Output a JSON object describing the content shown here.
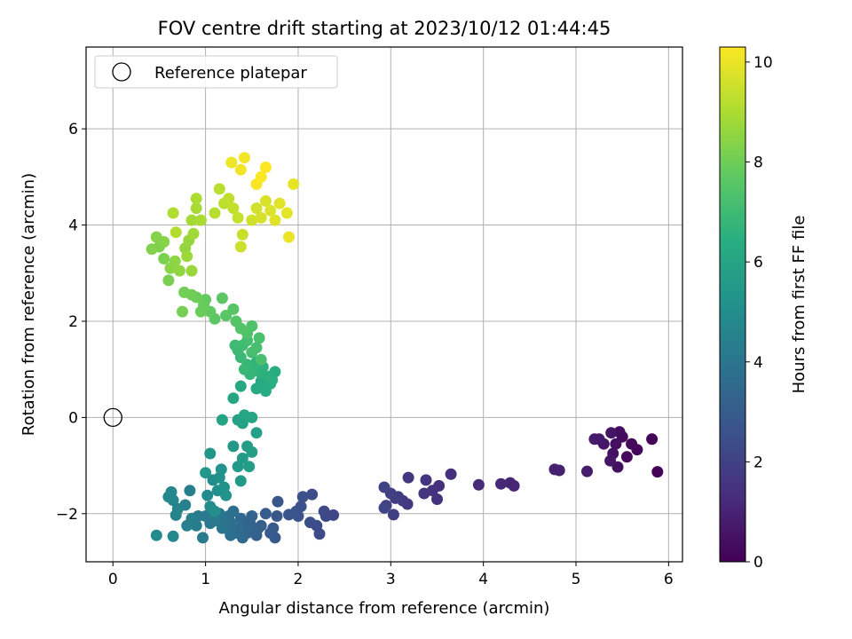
{
  "chart_data": {
    "type": "scatter",
    "title": "FOV centre drift starting at 2023/10/12 01:44:45",
    "xlabel": "Angular distance from reference (arcmin)",
    "ylabel": "Rotation from reference (arcmin)",
    "xlim": [
      -0.29,
      6.15
    ],
    "ylim": [
      -3.0,
      7.7
    ],
    "xticks": [
      0,
      1,
      2,
      3,
      4,
      5,
      6
    ],
    "yticks": [
      -2,
      0,
      2,
      4,
      6
    ],
    "grid": true,
    "legend": {
      "placement": "top-left",
      "entries": [
        {
          "label": "Reference platepar",
          "marker": "open-circle",
          "x": 0,
          "y": 0
        }
      ]
    },
    "colorbar": {
      "label": "Hours from first FF file",
      "colormap": "viridis",
      "range": [
        0,
        10.3
      ],
      "ticks": [
        0,
        2,
        4,
        6,
        8,
        10
      ]
    },
    "points": [
      [
        5.88,
        -1.13,
        0.05
      ],
      [
        5.82,
        -0.45,
        0.1
      ],
      [
        5.66,
        -0.67,
        0.15
      ],
      [
        5.6,
        -0.55,
        0.2
      ],
      [
        5.55,
        -0.82,
        0.25
      ],
      [
        5.5,
        -0.4,
        0.3
      ],
      [
        5.47,
        -0.3,
        0.35
      ],
      [
        5.45,
        -1.03,
        0.4
      ],
      [
        5.43,
        -0.55,
        0.45
      ],
      [
        5.4,
        -0.75,
        0.5
      ],
      [
        5.38,
        -0.32,
        0.55
      ],
      [
        5.37,
        -0.9,
        0.6
      ],
      [
        5.3,
        -0.55,
        0.65
      ],
      [
        5.25,
        -0.45,
        0.7
      ],
      [
        5.2,
        -0.45,
        0.75
      ],
      [
        5.12,
        -1.12,
        0.8
      ],
      [
        4.82,
        -1.1,
        0.9
      ],
      [
        4.77,
        -1.08,
        0.95
      ],
      [
        4.33,
        -1.42,
        1.05
      ],
      [
        4.29,
        -1.36,
        1.1
      ],
      [
        4.19,
        -1.38,
        1.15
      ],
      [
        3.95,
        -1.4,
        1.25
      ],
      [
        3.65,
        -1.18,
        1.35
      ],
      [
        3.52,
        -1.42,
        1.4
      ],
      [
        3.5,
        -1.7,
        1.45
      ],
      [
        3.45,
        -1.52,
        1.5
      ],
      [
        3.38,
        -1.3,
        1.55
      ],
      [
        3.36,
        -1.58,
        1.6
      ],
      [
        3.19,
        -1.25,
        1.65
      ],
      [
        3.18,
        -1.8,
        1.7
      ],
      [
        3.13,
        -1.73,
        1.75
      ],
      [
        3.08,
        -1.65,
        1.8
      ],
      [
        3.05,
        -1.68,
        1.85
      ],
      [
        3.03,
        -2.02,
        1.9
      ],
      [
        3.0,
        -1.58,
        1.95
      ],
      [
        2.95,
        -1.83,
        2.0
      ],
      [
        2.93,
        -1.45,
        2.05
      ],
      [
        2.93,
        -1.88,
        2.1
      ],
      [
        2.38,
        -2.03,
        2.15
      ],
      [
        2.3,
        -2.05,
        2.2
      ],
      [
        2.28,
        -1.95,
        2.25
      ],
      [
        2.23,
        -2.42,
        2.3
      ],
      [
        2.2,
        -2.25,
        2.35
      ],
      [
        2.15,
        -1.6,
        2.4
      ],
      [
        2.13,
        -2.18,
        2.45
      ],
      [
        2.05,
        -1.65,
        2.5
      ],
      [
        2.03,
        -1.85,
        2.55
      ],
      [
        2.0,
        -2.05,
        2.6
      ],
      [
        1.98,
        -1.95,
        2.65
      ],
      [
        1.9,
        -2.02,
        2.7
      ],
      [
        1.78,
        -1.75,
        2.75
      ],
      [
        1.77,
        -2.05,
        2.8
      ],
      [
        1.75,
        -2.5,
        2.85
      ],
      [
        1.73,
        -2.3,
        2.9
      ],
      [
        1.7,
        -2.4,
        2.95
      ],
      [
        1.65,
        -2.0,
        3.0
      ],
      [
        1.6,
        -2.25,
        3.05
      ],
      [
        1.57,
        -2.3,
        3.1
      ],
      [
        1.55,
        -2.45,
        3.15
      ],
      [
        1.52,
        -2.35,
        3.2
      ],
      [
        1.5,
        -2.05,
        3.25
      ],
      [
        1.48,
        -2.2,
        3.3
      ],
      [
        1.45,
        -2.4,
        3.35
      ],
      [
        1.42,
        -2.3,
        3.4
      ],
      [
        1.4,
        -2.5,
        3.45
      ],
      [
        1.38,
        -2.1,
        3.5
      ],
      [
        1.35,
        -2.32,
        3.55
      ],
      [
        1.32,
        -2.4,
        3.6
      ],
      [
        1.3,
        -1.95,
        3.65
      ],
      [
        1.28,
        -2.2,
        3.7
      ],
      [
        1.27,
        -2.45,
        3.75
      ],
      [
        1.25,
        -2.05,
        3.8
      ],
      [
        1.22,
        -2.3,
        3.85
      ],
      [
        1.2,
        -2.1,
        3.9
      ],
      [
        1.18,
        -2.3,
        3.95
      ],
      [
        1.15,
        -2.0,
        4.0
      ],
      [
        1.1,
        -2.15,
        4.05
      ],
      [
        1.05,
        -2.2,
        4.1
      ],
      [
        1.0,
        -2.05,
        4.15
      ],
      [
        0.97,
        -2.5,
        4.2
      ],
      [
        0.92,
        -2.05,
        4.25
      ],
      [
        0.9,
        -2.25,
        4.3
      ],
      [
        0.85,
        -2.1,
        4.35
      ],
      [
        0.83,
        -1.52,
        4.4
      ],
      [
        0.8,
        -2.25,
        4.45
      ],
      [
        0.78,
        -1.82,
        4.5
      ],
      [
        0.7,
        -1.9,
        4.55
      ],
      [
        0.68,
        -2.03,
        4.6
      ],
      [
        0.65,
        -1.72,
        4.65
      ],
      [
        0.63,
        -1.55,
        4.7
      ],
      [
        0.6,
        -1.65,
        4.75
      ],
      [
        0.65,
        -2.47,
        4.8
      ],
      [
        0.47,
        -2.45,
        4.85
      ],
      [
        1.02,
        -1.62,
        4.9
      ],
      [
        1.05,
        -1.85,
        4.95
      ],
      [
        1.08,
        -1.3,
        5.0
      ],
      [
        1.1,
        -1.95,
        5.05
      ],
      [
        1.13,
        -1.52,
        5.1
      ],
      [
        1.15,
        -1.25,
        5.15
      ],
      [
        1.17,
        -1.08,
        5.2
      ],
      [
        1.2,
        -1.45,
        5.25
      ],
      [
        1.22,
        -1.62,
        5.3
      ],
      [
        1.05,
        -0.75,
        5.35
      ],
      [
        1.0,
        -1.15,
        5.4
      ],
      [
        1.3,
        -0.6,
        5.45
      ],
      [
        1.35,
        -1.02,
        5.5
      ],
      [
        1.38,
        -1.32,
        5.55
      ],
      [
        1.4,
        -0.85,
        5.6
      ],
      [
        1.45,
        -0.6,
        5.65
      ],
      [
        1.47,
        -1.02,
        5.7
      ],
      [
        1.5,
        -0.72,
        5.75
      ],
      [
        1.55,
        -0.32,
        5.8
      ],
      [
        1.4,
        -0.12,
        5.85
      ],
      [
        1.35,
        -0.05,
        5.9
      ],
      [
        1.18,
        -0.05,
        5.95
      ],
      [
        1.42,
        0.05,
        6.0
      ],
      [
        1.5,
        0.0,
        6.05
      ],
      [
        1.3,
        0.4,
        6.1
      ],
      [
        1.38,
        0.65,
        6.15
      ],
      [
        1.55,
        0.6,
        6.2
      ],
      [
        1.6,
        0.75,
        6.25
      ],
      [
        1.65,
        0.55,
        6.3
      ],
      [
        1.7,
        0.7,
        6.35
      ],
      [
        1.75,
        0.95,
        6.4
      ],
      [
        1.72,
        0.78,
        6.45
      ],
      [
        1.68,
        0.85,
        6.5
      ],
      [
        1.62,
        1.05,
        6.55
      ],
      [
        1.58,
        0.95,
        6.6
      ],
      [
        1.55,
        1.15,
        6.65
      ],
      [
        1.52,
        1.0,
        6.7
      ],
      [
        1.48,
        0.9,
        6.75
      ],
      [
        1.45,
        1.1,
        6.8
      ],
      [
        1.42,
        1.0,
        6.85
      ],
      [
        1.38,
        1.25,
        6.9
      ],
      [
        1.35,
        1.4,
        6.95
      ],
      [
        1.32,
        1.5,
        7.0
      ],
      [
        1.4,
        1.5,
        7.05
      ],
      [
        1.45,
        1.6,
        7.1
      ],
      [
        1.5,
        1.35,
        7.15
      ],
      [
        1.55,
        1.45,
        7.2
      ],
      [
        1.6,
        1.2,
        7.25
      ],
      [
        1.58,
        1.65,
        7.3
      ],
      [
        1.5,
        1.9,
        7.35
      ],
      [
        1.45,
        1.75,
        7.4
      ],
      [
        1.38,
        1.85,
        7.45
      ],
      [
        1.33,
        2.0,
        7.5
      ],
      [
        1.3,
        2.25,
        7.55
      ],
      [
        1.22,
        2.12,
        7.6
      ],
      [
        1.18,
        2.48,
        7.65
      ],
      [
        1.1,
        2.05,
        7.7
      ],
      [
        1.05,
        2.2,
        7.75
      ],
      [
        1.0,
        2.45,
        7.8
      ],
      [
        0.98,
        2.35,
        7.85
      ],
      [
        0.95,
        2.2,
        7.9
      ],
      [
        0.9,
        2.5,
        7.95
      ],
      [
        0.85,
        2.55,
        8.0
      ],
      [
        0.77,
        2.6,
        8.05
      ],
      [
        0.75,
        2.2,
        8.1
      ],
      [
        0.6,
        2.85,
        8.15
      ],
      [
        0.55,
        3.3,
        8.2
      ],
      [
        0.5,
        3.55,
        8.25
      ],
      [
        0.42,
        3.5,
        8.3
      ],
      [
        0.47,
        3.75,
        8.35
      ],
      [
        0.55,
        3.65,
        8.4
      ],
      [
        0.62,
        3.1,
        8.45
      ],
      [
        0.67,
        3.25,
        8.5
      ],
      [
        0.72,
        3.05,
        8.55
      ],
      [
        0.78,
        3.52,
        8.6
      ],
      [
        0.82,
        3.68,
        8.65
      ],
      [
        0.85,
        3.05,
        8.7
      ],
      [
        0.8,
        3.35,
        8.75
      ],
      [
        0.87,
        3.82,
        8.8
      ],
      [
        0.85,
        4.1,
        8.85
      ],
      [
        0.9,
        4.35,
        8.9
      ],
      [
        0.95,
        4.1,
        8.95
      ],
      [
        0.9,
        4.55,
        9.0
      ],
      [
        0.65,
        4.25,
        9.05
      ],
      [
        0.68,
        3.85,
        9.1
      ],
      [
        1.1,
        4.25,
        9.15
      ],
      [
        1.15,
        4.75,
        9.2
      ],
      [
        1.2,
        4.45,
        9.25
      ],
      [
        1.25,
        4.55,
        9.3
      ],
      [
        1.3,
        4.35,
        9.35
      ],
      [
        1.35,
        4.15,
        9.4
      ],
      [
        1.4,
        3.8,
        9.45
      ],
      [
        1.38,
        3.55,
        9.5
      ],
      [
        1.5,
        4.1,
        9.55
      ],
      [
        1.55,
        4.35,
        9.6
      ],
      [
        1.6,
        4.15,
        9.65
      ],
      [
        1.65,
        4.5,
        9.7
      ],
      [
        1.7,
        4.3,
        9.75
      ],
      [
        1.75,
        4.1,
        9.8
      ],
      [
        1.8,
        4.45,
        9.85
      ],
      [
        1.88,
        4.25,
        9.9
      ],
      [
        1.95,
        4.85,
        9.95
      ],
      [
        1.9,
        3.75,
        10.0
      ],
      [
        1.28,
        5.3,
        10.05
      ],
      [
        1.38,
        5.15,
        10.1
      ],
      [
        1.42,
        5.4,
        10.15
      ],
      [
        1.55,
        4.85,
        10.2
      ],
      [
        1.6,
        5.0,
        10.25
      ],
      [
        1.65,
        5.2,
        10.3
      ]
    ]
  }
}
